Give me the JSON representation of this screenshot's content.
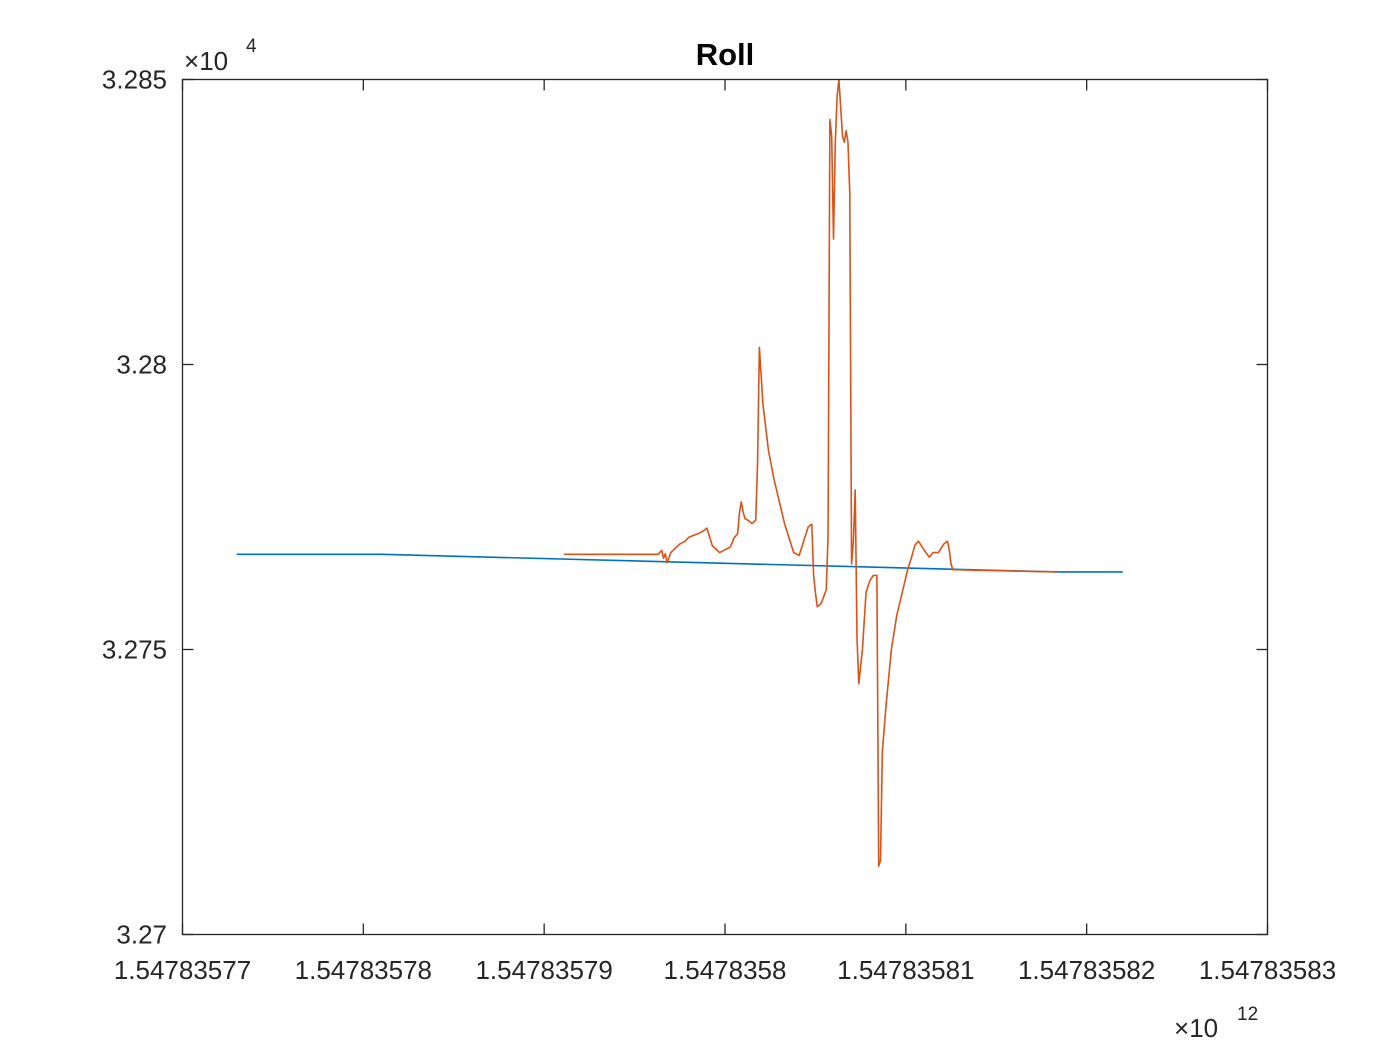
{
  "chart_data": {
    "type": "line",
    "title": "Roll",
    "xlabel": "",
    "ylabel": "",
    "x_multiplier": {
      "symbol": "×",
      "base": "10",
      "exponent": "12"
    },
    "y_multiplier": {
      "symbol": "×",
      "base": "10",
      "exponent": "4"
    },
    "xlim": [
      1.54783577,
      1.54783583
    ],
    "ylim": [
      3.27,
      3.285
    ],
    "x_ticks": [
      1.54783577,
      1.54783578,
      1.54783579,
      1.5478358,
      1.54783581,
      1.54783582,
      1.54783583
    ],
    "x_tick_labels": [
      "1.54783577",
      "1.54783578",
      "1.54783579",
      "1.5478358",
      "1.54783581",
      "1.54783582",
      "1.54783583"
    ],
    "y_ticks": [
      3.27,
      3.275,
      3.28,
      3.285
    ],
    "y_tick_labels": [
      "3.27",
      "3.275",
      "3.28",
      "3.285"
    ],
    "grid": false,
    "legend": "none",
    "series": [
      {
        "color": "#0072BD",
        "points": [
          [
            1.547835773,
            3.27667
          ],
          [
            1.547835781,
            3.27667
          ],
          [
            1.5478358184,
            3.27636
          ],
          [
            1.547835822,
            3.27636
          ]
        ]
      },
      {
        "color": "#D95319",
        "points": [
          [
            1.5478357911,
            3.27667
          ],
          [
            1.5478357963,
            3.27667
          ],
          [
            1.5478357965,
            3.27674
          ],
          [
            1.5478357966,
            3.2766
          ],
          [
            1.5478357967,
            3.27668
          ],
          [
            1.5478357968,
            3.27652
          ],
          [
            1.547835797,
            3.2767
          ],
          [
            1.5478357975,
            3.27685
          ],
          [
            1.5478357978,
            3.2769
          ],
          [
            1.547835798,
            3.27697
          ],
          [
            1.5478357985,
            3.27703
          ],
          [
            1.5478357988,
            3.27708
          ],
          [
            1.547835799,
            3.27713
          ],
          [
            1.5478357993,
            3.27682
          ],
          [
            1.5478357997,
            3.2767
          ],
          [
            1.5478358003,
            3.2768
          ],
          [
            1.5478358005,
            3.27696
          ],
          [
            1.5478358007,
            3.27703
          ],
          [
            1.5478358008,
            3.2774
          ],
          [
            1.5478358009,
            3.27759
          ],
          [
            1.547835801,
            3.27742
          ],
          [
            1.5478358011,
            3.2773
          ],
          [
            1.5478358013,
            3.27726
          ],
          [
            1.5478358015,
            3.27721
          ],
          [
            1.5478358017,
            3.27727
          ],
          [
            1.5478358018,
            3.27826
          ],
          [
            1.5478358019,
            3.2803
          ],
          [
            1.5478358021,
            3.2793
          ],
          [
            1.5478358024,
            3.2785
          ],
          [
            1.5478358027,
            3.278
          ],
          [
            1.547835803,
            3.2776
          ],
          [
            1.5478358033,
            3.2772
          ],
          [
            1.5478358036,
            3.2769
          ],
          [
            1.5478358038,
            3.2767
          ],
          [
            1.5478358041,
            3.27665
          ],
          [
            1.5478358043,
            3.27685
          ],
          [
            1.5478358046,
            3.27715
          ],
          [
            1.5478358048,
            3.2772
          ],
          [
            1.5478358049,
            3.2763
          ],
          [
            1.547835805,
            3.276
          ],
          [
            1.5478358051,
            3.27575
          ],
          [
            1.5478358053,
            3.2758
          ],
          [
            1.5478358055,
            3.27596
          ],
          [
            1.5478358056,
            3.27605
          ],
          [
            1.5478358057,
            3.277
          ],
          [
            1.5478358058,
            3.2843
          ],
          [
            1.5478358059,
            3.284
          ],
          [
            1.547835806,
            3.2822
          ],
          [
            1.5478358061,
            3.2839
          ],
          [
            1.5478358062,
            3.2847
          ],
          [
            1.5478358063,
            3.285
          ],
          [
            1.5478358064,
            3.2845
          ],
          [
            1.5478358065,
            3.284
          ],
          [
            1.5478358066,
            3.2839
          ],
          [
            1.5478358067,
            3.2841
          ],
          [
            1.5478358068,
            3.2839
          ],
          [
            1.5478358069,
            3.283
          ],
          [
            1.547835807,
            3.2765
          ],
          [
            1.5478358071,
            3.2769
          ],
          [
            1.5478358072,
            3.2778
          ],
          [
            1.5478358073,
            3.2752
          ],
          [
            1.5478358074,
            3.2744
          ],
          [
            1.5478358076,
            3.275
          ],
          [
            1.5478358078,
            3.276
          ],
          [
            1.547835808,
            3.2762
          ],
          [
            1.5478358082,
            3.2763
          ],
          [
            1.5478358084,
            3.2763
          ],
          [
            1.5478358085,
            3.2712
          ],
          [
            1.5478358086,
            3.2713
          ],
          [
            1.5478358087,
            3.2732
          ],
          [
            1.5478358089,
            3.274
          ],
          [
            1.5478358092,
            3.275
          ],
          [
            1.5478358095,
            3.2756
          ],
          [
            1.5478358098,
            3.276
          ],
          [
            1.5478358101,
            3.2764
          ],
          [
            1.5478358103,
            3.2766
          ],
          [
            1.5478358105,
            3.27683
          ],
          [
            1.5478358107,
            3.2769
          ],
          [
            1.547835811,
            3.27675
          ],
          [
            1.5478358113,
            3.27662
          ],
          [
            1.5478358115,
            3.2767
          ],
          [
            1.5478358118,
            3.2767
          ],
          [
            1.5478358121,
            3.27685
          ],
          [
            1.5478358123,
            3.2769
          ],
          [
            1.5478358124,
            3.27675
          ],
          [
            1.5478358125,
            3.2765
          ],
          [
            1.5478358126,
            3.2764
          ],
          [
            1.5478358184,
            3.27636
          ]
        ]
      }
    ]
  }
}
